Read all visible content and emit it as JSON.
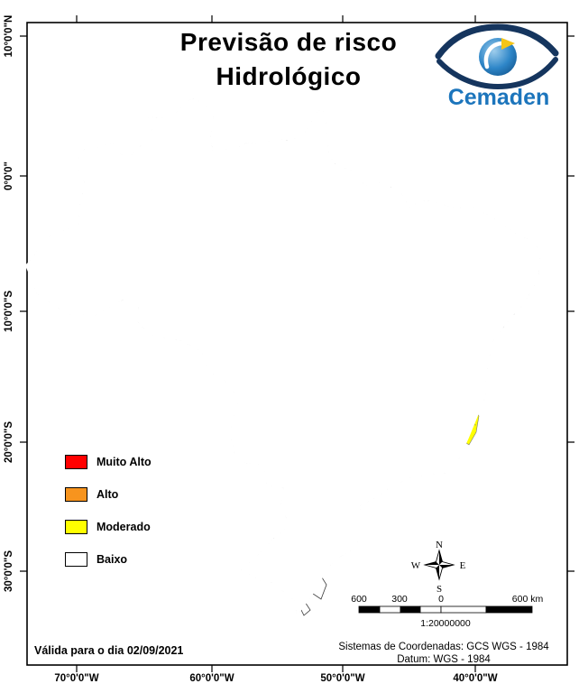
{
  "title": {
    "line1": "Previsão de risco",
    "line2": "Hidrológico"
  },
  "logo": {
    "text": "Cemaden"
  },
  "legend": {
    "items": [
      {
        "label": "Muito Alto",
        "color": "#ff0000"
      },
      {
        "label": "Alto",
        "color": "#f7941e"
      },
      {
        "label": "Moderado",
        "color": "#ffff00"
      },
      {
        "label": "Baixo",
        "color": "#ffffff"
      }
    ]
  },
  "axes": {
    "lat_labels": [
      "10°0'0\"N",
      "0°0'0\"",
      "10°0'0\"S",
      "20°0'0\"S",
      "30°0'0\"S"
    ],
    "lon_labels": [
      "70°0'0\"W",
      "60°0'0\"W",
      "50°0'0\"W",
      "40°0'0\"W"
    ]
  },
  "compass": {
    "north": "N",
    "east": "E",
    "south": "S",
    "west": "W"
  },
  "scalebar": {
    "labels": [
      "600",
      "300",
      "0",
      "600 km"
    ],
    "ratio": "1:20000000"
  },
  "footer": {
    "valid_date": "Válida para o dia 02/09/2021",
    "coord_system": "Sistemas de Coordenadas: GCS WGS - 1984",
    "datum": "Datum: WGS - 1984"
  },
  "map": {
    "moderate_region_color": "#ffff00",
    "land_color": "#ffffff",
    "border_color": "#111111"
  }
}
